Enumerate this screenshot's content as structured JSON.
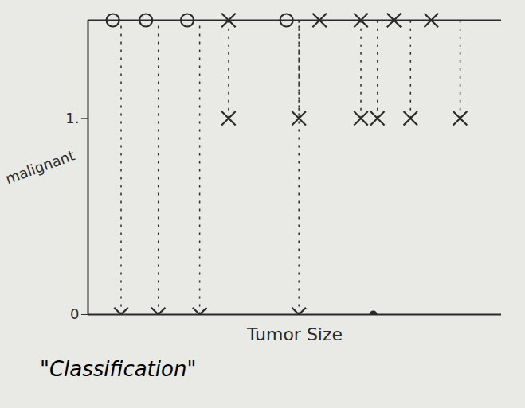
{
  "chart_data": {
    "type": "scatter",
    "title": "\"Classification\"",
    "xlabel": "Tumor Size",
    "ylabel": "malignant",
    "color": "#2a2a2a",
    "xlim": [
      0,
      10
    ],
    "ylim": [
      0,
      1.5
    ],
    "yticks": [
      0,
      {
        "value": 1,
        "label": "1."
      }
    ],
    "tick_labels": "y",
    "series": [
      {
        "marker": "x",
        "x": [
          0.8,
          1.7,
          2.7,
          5.1,
          3.4,
          5.1,
          6.6,
          7.0,
          7.8,
          9.0
        ],
        "values": [
          0,
          0,
          0,
          0,
          1,
          1,
          1,
          1,
          1,
          1
        ]
      },
      {
        "marker": "dot",
        "x": [
          6.9
        ],
        "values": [
          0
        ]
      }
    ],
    "strip": [
      {
        "marker": "o",
        "x": [
          0.6,
          1.4,
          2.4,
          4.8
        ]
      },
      {
        "marker": "x",
        "x": [
          3.4,
          5.6,
          6.6,
          7.4,
          8.3
        ]
      }
    ]
  }
}
